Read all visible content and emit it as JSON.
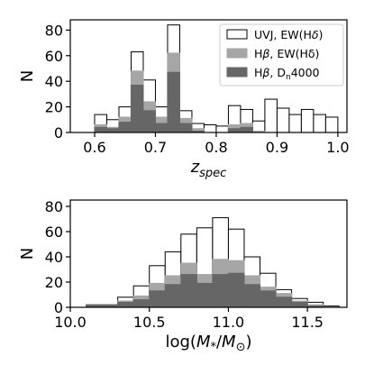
{
  "chart_data": [
    {
      "type": "bar",
      "histtype": "step-stacked-overlay",
      "xlabel": "z_spec",
      "xlabel_main": "z",
      "xlabel_sub": "spec",
      "ylabel": "N",
      "xlim": [
        0.56,
        1.015
      ],
      "ylim": [
        0,
        88
      ],
      "xticks": [
        0.6,
        0.7,
        0.8,
        0.9,
        1.0
      ],
      "xtick_labels": [
        "0.6",
        "0.7",
        "0.8",
        "0.9",
        "1.0"
      ],
      "yticks": [
        0,
        20,
        40,
        60,
        80
      ],
      "ytick_labels": [
        "0",
        "20",
        "40",
        "60",
        "80"
      ],
      "bin_edges": [
        0.6,
        0.62,
        0.64,
        0.66,
        0.68,
        0.7,
        0.72,
        0.74,
        0.76,
        0.78,
        0.8,
        0.82,
        0.84,
        0.86,
        0.88,
        0.9,
        0.92,
        0.94,
        0.96,
        0.98,
        1.0
      ],
      "legend_position": "top-right",
      "legend": [
        {
          "main": "UVJ, EW(H",
          "greek": "δ",
          "tail": ")"
        },
        {
          "main": "H",
          "greek": "β",
          "tail": ", EW(Hδ)"
        },
        {
          "main": "H",
          "greek": "β",
          "tail": ", D",
          "sub": "n",
          "end": "4000"
        }
      ],
      "series": [
        {
          "name": "UVJ, EW(Hδ)",
          "fill": "#ffffff",
          "edge": "#000000",
          "values": [
            14,
            10,
            20,
            63,
            41,
            20,
            84,
            17,
            7,
            6,
            5,
            21,
            18,
            9,
            26,
            19,
            14,
            18,
            14,
            12
          ]
        },
        {
          "name": "Hβ, EW(Hδ)",
          "fill": "#a6a6a6",
          "edge": "#a6a6a6",
          "values": [
            6,
            4,
            12,
            48,
            24,
            12,
            62,
            11,
            3,
            0,
            0,
            6,
            7,
            1,
            0,
            0,
            0,
            0,
            0,
            0
          ]
        },
        {
          "name": "Hβ, Dn4000",
          "fill": "#666666",
          "edge": "#666666",
          "values": [
            4,
            3,
            8,
            37,
            17,
            7,
            47,
            7,
            1,
            0,
            0,
            3,
            4,
            0,
            0,
            0,
            0,
            0,
            0,
            0
          ]
        }
      ]
    },
    {
      "type": "bar",
      "histtype": "step-stacked-overlay",
      "xlabel": "log(M*/M⊙)",
      "ylabel": "N",
      "xlim": [
        10.0,
        11.75
      ],
      "ylim": [
        0,
        85
      ],
      "xticks": [
        10.0,
        10.5,
        11.0,
        11.5
      ],
      "xtick_labels": [
        "10.0",
        "10.5",
        "11.0",
        "11.5"
      ],
      "yticks": [
        0,
        20,
        40,
        60,
        80
      ],
      "ytick_labels": [
        "0",
        "20",
        "40",
        "60",
        "80"
      ],
      "bin_edges": [
        10.1,
        10.2,
        10.3,
        10.4,
        10.5,
        10.6,
        10.7,
        10.8,
        10.9,
        11.0,
        11.1,
        11.2,
        11.3,
        11.4,
        11.5,
        11.6,
        11.7
      ],
      "series": [
        {
          "name": "UVJ, EW(Hδ)",
          "fill": "#ffffff",
          "edge": "#000000",
          "values": [
            2,
            2,
            8,
            17,
            33,
            44,
            58,
            63,
            71,
            62,
            40,
            27,
            14,
            7,
            4,
            1
          ]
        },
        {
          "name": "Hβ, EW(Hδ)",
          "fill": "#a6a6a6",
          "edge": "#a6a6a6",
          "values": [
            2,
            2,
            5,
            9,
            19,
            25,
            35,
            26,
            38,
            37,
            25,
            16,
            11,
            5,
            2,
            0
          ]
        },
        {
          "name": "Hβ, Dn4000",
          "fill": "#666666",
          "edge": "#666666",
          "values": [
            2,
            2,
            4,
            6,
            13,
            18,
            26,
            19,
            26,
            27,
            18,
            13,
            8,
            4,
            1,
            0
          ]
        }
      ]
    }
  ]
}
